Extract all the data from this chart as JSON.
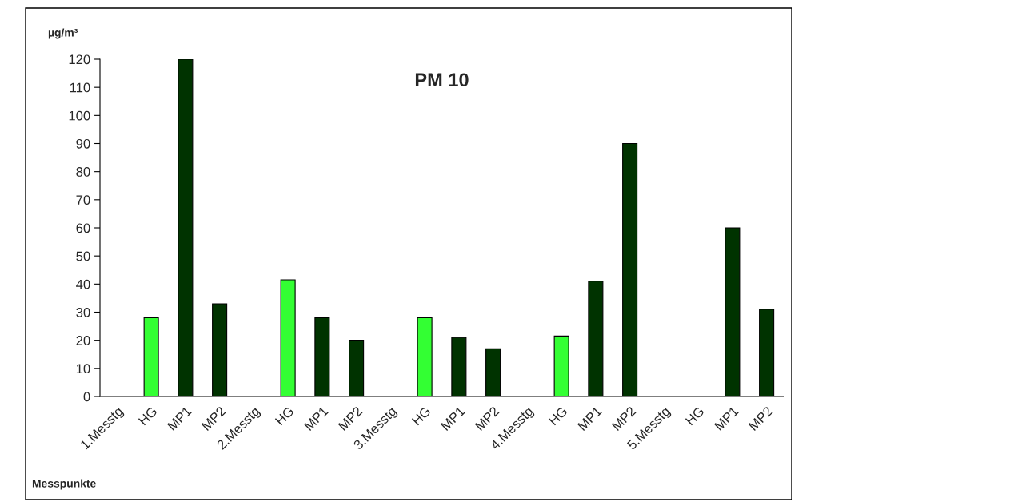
{
  "chart_data": {
    "type": "bar",
    "title": "PM 10",
    "ylabel": "µg/m³",
    "xlabel": "Messpunkte",
    "categories": [
      "1.Messtg",
      "HG",
      "MP1",
      "MP2",
      "2.Messtg",
      "HG",
      "MP1",
      "MP2",
      "3.Messtg",
      "HG",
      "MP1",
      "MP2",
      "4.Messtg",
      "HG",
      "MP1",
      "MP2",
      "5.Messtg",
      "HG",
      "MP1",
      "MP2"
    ],
    "values": [
      null,
      28,
      120,
      33,
      null,
      41.5,
      28,
      20,
      null,
      28,
      21,
      17,
      null,
      21.5,
      41,
      90,
      null,
      null,
      60,
      31
    ],
    "colors": [
      "#003300",
      "#33ff33",
      "#003300",
      "#003300",
      "#003300",
      "#33ff33",
      "#003300",
      "#003300",
      "#003300",
      "#33ff33",
      "#003300",
      "#003300",
      "#003300",
      "#33ff33",
      "#003300",
      "#003300",
      "#003300",
      "#33ff33",
      "#003300",
      "#003300"
    ],
    "ylim": [
      0,
      120
    ],
    "yticks": [
      0,
      10,
      20,
      30,
      40,
      50,
      60,
      70,
      80,
      90,
      100,
      110,
      120
    ],
    "grid": false,
    "legend": false
  }
}
